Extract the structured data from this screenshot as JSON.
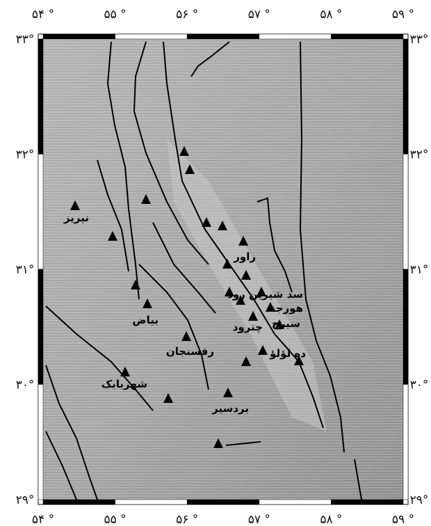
{
  "map": {
    "x_ticks": [
      "۵۴ °",
      "۵۵ °",
      "۵۶ °",
      "۵۷ °",
      "۵۸ °",
      "۵۹ °"
    ],
    "y_ticks": [
      "۳۳°",
      "۳۲°",
      "۳۱°",
      "۳۰°",
      "۲۹°"
    ],
    "places": [
      "نیریز",
      "راور",
      "سد شیرین رود",
      "هورجند",
      "سیرچ",
      "چترود",
      "ده لؤلؤ",
      "بیاض",
      "رفسنجان",
      "شهربابک",
      "بردسیر"
    ]
  }
}
